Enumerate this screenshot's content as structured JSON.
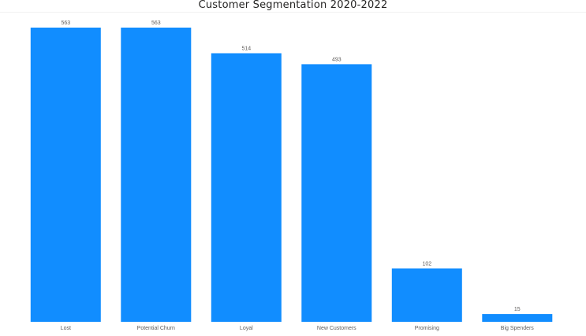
{
  "chart_data": {
    "type": "bar",
    "title": "Customer Segmentation 2020-2022",
    "categories": [
      "Lost",
      "Potential Churn",
      "Loyal",
      "New Customers",
      "Promising",
      "Big Spenders"
    ],
    "values": [
      563,
      563,
      514,
      493,
      102,
      15
    ],
    "ylim": [
      0,
      563
    ],
    "grid": false,
    "data_labels": true,
    "colors": {
      "bar": "#118DFF",
      "text": "#605E5C",
      "title": "#252423"
    }
  }
}
